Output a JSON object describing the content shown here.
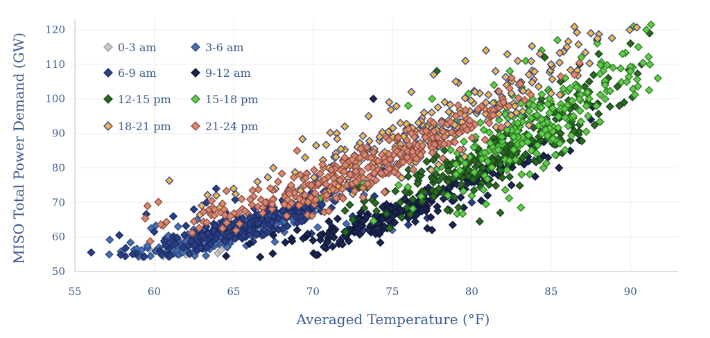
{
  "chart_data": {
    "type": "scatter",
    "title": "",
    "xlabel": "Averaged Temperature (°F)",
    "ylabel": "MISO Total Power Demand (GW)",
    "xlim": [
      55,
      93
    ],
    "ylim": [
      50,
      123
    ],
    "xticks": [
      55,
      60,
      65,
      70,
      75,
      80,
      85,
      90
    ],
    "yticks": [
      50,
      60,
      70,
      80,
      90,
      100,
      110,
      120
    ],
    "grid": true,
    "marker": "diamond",
    "legend_position": "top-left",
    "series": [
      {
        "name": "0-3 am",
        "color": "#c8c8c8",
        "stroke": "#9a9a9a",
        "center": [
          62.5,
          58
        ],
        "dx": 1.6,
        "dy": 1.8,
        "points": [
          [
            60.2,
            56.5
          ],
          [
            61.0,
            57.2
          ],
          [
            61.8,
            58.0
          ],
          [
            62.3,
            56.8
          ],
          [
            62.9,
            59.1
          ],
          [
            63.4,
            57.5
          ],
          [
            63.8,
            58.6
          ],
          [
            64.0,
            55.3
          ],
          [
            64.2,
            56.2
          ],
          [
            62.0,
            60.0
          ],
          [
            61.4,
            59.0
          ],
          [
            63.1,
            60.5
          ],
          [
            60.8,
            58.3
          ],
          [
            64.5,
            57.8
          ],
          [
            62.6,
            57.0
          ],
          [
            63.6,
            59.5
          ]
        ]
      },
      {
        "name": "3-6 am",
        "color": "#4a6fb0",
        "stroke": "#2c4a85",
        "center": [
          64.5,
          60.5
        ],
        "dx": 3.2,
        "dy": 3.0,
        "points": [
          [
            57.2,
            59.2
          ],
          [
            58.5,
            58.4
          ],
          [
            59.2,
            56.2
          ],
          [
            59.8,
            62.5
          ],
          [
            60.3,
            57.0
          ],
          [
            60.9,
            60.4
          ],
          [
            61.5,
            63.0
          ],
          [
            61.8,
            55.6
          ],
          [
            62.4,
            58.5
          ],
          [
            63.0,
            61.2
          ],
          [
            63.5,
            56.5
          ],
          [
            64.1,
            64.0
          ],
          [
            64.6,
            59.0
          ],
          [
            65.2,
            62.6
          ],
          [
            65.8,
            57.5
          ],
          [
            66.4,
            60.5
          ],
          [
            67.0,
            63.4
          ],
          [
            67.6,
            58.6
          ],
          [
            68.2,
            61.4
          ],
          [
            68.8,
            64.2
          ],
          [
            69.5,
            60.0
          ],
          [
            70.3,
            62.8
          ],
          [
            71.0,
            59.5
          ],
          [
            72.1,
            63.8
          ],
          [
            73.0,
            61.0
          ],
          [
            74.2,
            64.5
          ],
          [
            75.0,
            62.0
          ],
          [
            60.1,
            63.3
          ],
          [
            62.7,
            65.0
          ],
          [
            66.0,
            66.2
          ]
        ]
      },
      {
        "name": "6-9 am",
        "color": "#2a3f85",
        "stroke": "#1a2a60",
        "center": [
          66.0,
          63.0
        ],
        "dx": 3.5,
        "dy": 3.5,
        "points": [
          [
            57.8,
            60.5
          ],
          [
            58.2,
            56.8
          ],
          [
            59.5,
            66.6
          ],
          [
            60.0,
            61.5
          ],
          [
            61.2,
            66.0
          ],
          [
            62.0,
            63.2
          ],
          [
            62.5,
            68.0
          ],
          [
            63.3,
            70.0
          ],
          [
            63.9,
            74.0
          ],
          [
            64.5,
            66.5
          ],
          [
            65.1,
            70.8
          ],
          [
            65.7,
            63.5
          ],
          [
            66.3,
            68.2
          ],
          [
            66.9,
            60.6
          ],
          [
            67.5,
            66.0
          ],
          [
            68.1,
            62.5
          ],
          [
            68.7,
            69.0
          ],
          [
            69.3,
            64.5
          ],
          [
            69.9,
            61.0
          ],
          [
            70.5,
            67.5
          ],
          [
            71.2,
            63.0
          ],
          [
            71.9,
            60.0
          ],
          [
            72.5,
            66.0
          ],
          [
            73.2,
            62.0
          ],
          [
            74.0,
            64.8
          ],
          [
            75.1,
            66.5
          ],
          [
            76.0,
            63.5
          ],
          [
            77.2,
            65.5
          ],
          [
            78.5,
            68.0
          ],
          [
            80.0,
            70.0
          ]
        ]
      },
      {
        "name": "9-12 am",
        "color": "#1a2550",
        "stroke": "#0e1635",
        "center": [
          75.0,
          66.0
        ],
        "dx": 4.0,
        "dy": 4.0,
        "points": [
          [
            66.0,
            58.0
          ],
          [
            67.5,
            60.5
          ],
          [
            69.0,
            62.0
          ],
          [
            70.0,
            59.0
          ],
          [
            71.0,
            64.5
          ],
          [
            72.0,
            61.5
          ],
          [
            73.0,
            67.0
          ],
          [
            73.8,
            100.0
          ],
          [
            74.5,
            63.0
          ],
          [
            75.2,
            69.0
          ],
          [
            76.0,
            65.5
          ],
          [
            76.8,
            71.0
          ],
          [
            77.5,
            62.0
          ],
          [
            77.2,
            62.5
          ],
          [
            78.2,
            74.0
          ],
          [
            78.8,
            63.5
          ],
          [
            79.5,
            68.5
          ],
          [
            80.2,
            76.0
          ],
          [
            81.0,
            72.0
          ],
          [
            81.8,
            78.5
          ],
          [
            82.5,
            75.0
          ],
          [
            83.3,
            81.0
          ],
          [
            84.0,
            77.5
          ],
          [
            84.8,
            83.0
          ],
          [
            85.5,
            80.0
          ],
          [
            86.2,
            85.0
          ],
          [
            86.8,
            88.0
          ],
          [
            87.5,
            94.0
          ],
          [
            83.6,
            82.0
          ],
          [
            80.6,
            70.5
          ]
        ]
      },
      {
        "name": "12-15 pm",
        "color": "#2a6a24",
        "stroke": "#174016",
        "center": [
          81.0,
          82.0
        ],
        "dx": 4.0,
        "dy": 8.0,
        "points": [
          [
            72.5,
            65.0
          ],
          [
            74.0,
            67.5
          ],
          [
            75.5,
            70.0
          ],
          [
            77.0,
            73.0
          ],
          [
            77.8,
            108.0
          ],
          [
            78.5,
            76.0
          ],
          [
            79.0,
            78.5
          ],
          [
            79.8,
            82.0
          ],
          [
            80.5,
            64.5
          ],
          [
            80.7,
            80.0
          ],
          [
            81.2,
            86.0
          ],
          [
            81.8,
            67.0
          ],
          [
            82.2,
            90.0
          ],
          [
            82.8,
            84.0
          ],
          [
            83.3,
            95.0
          ],
          [
            83.8,
            88.0
          ],
          [
            84.4,
            100.0
          ],
          [
            85.0,
            92.0
          ],
          [
            85.6,
            105.0
          ],
          [
            86.2,
            97.0
          ],
          [
            86.8,
            110.0
          ],
          [
            87.4,
            102.0
          ],
          [
            88.0,
            113.0
          ],
          [
            88.6,
            106.0
          ],
          [
            89.3,
            98.0
          ],
          [
            90.0,
            116.0
          ],
          [
            90.7,
            110.0
          ],
          [
            91.2,
            119.0
          ],
          [
            84.6,
            112.0
          ],
          [
            87.9,
            117.0
          ]
        ]
      },
      {
        "name": "15-18 pm",
        "color": "#5fcc4a",
        "stroke": "#2e7a25",
        "center": [
          84.0,
          92.0
        ],
        "dx": 3.6,
        "dy": 10.0,
        "points": [
          [
            76.0,
            98.0
          ],
          [
            77.5,
            100.0
          ],
          [
            78.5,
            72.0
          ],
          [
            79.0,
            92.0
          ],
          [
            79.8,
            101.5
          ],
          [
            80.3,
            96.0
          ],
          [
            80.9,
            69.5
          ],
          [
            81.4,
            104.0
          ],
          [
            81.9,
            89.0
          ],
          [
            82.4,
            108.0
          ],
          [
            82.9,
            93.0
          ],
          [
            83.1,
            68.5
          ],
          [
            83.4,
            111.0
          ],
          [
            83.9,
            98.0
          ],
          [
            84.4,
            114.0
          ],
          [
            84.9,
            102.0
          ],
          [
            85.4,
            117.0
          ],
          [
            85.9,
            106.0
          ],
          [
            86.4,
            95.0
          ],
          [
            86.9,
            112.0
          ],
          [
            87.4,
            100.0
          ],
          [
            87.9,
            116.0
          ],
          [
            88.4,
            104.0
          ],
          [
            88.9,
            109.0
          ],
          [
            89.5,
            113.0
          ],
          [
            90.0,
            108.0
          ],
          [
            90.5,
            115.0
          ],
          [
            91.0,
            120.0
          ],
          [
            91.3,
            121.5
          ],
          [
            90.2,
            121.0
          ]
        ]
      },
      {
        "name": "18-21 pm",
        "color": "#f0b84e",
        "stroke": "#2c3f85",
        "center": [
          77.5,
          90.0
        ],
        "dx": 5.5,
        "dy": 8.0,
        "points": [
          [
            63.5,
            67.0
          ],
          [
            65.0,
            74.0
          ],
          [
            66.5,
            76.0
          ],
          [
            67.5,
            80.0
          ],
          [
            68.5,
            74.0
          ],
          [
            69.5,
            83.0
          ],
          [
            70.2,
            86.5
          ],
          [
            71.0,
            80.0
          ],
          [
            72.0,
            92.0
          ],
          [
            72.8,
            86.0
          ],
          [
            73.5,
            95.0
          ],
          [
            74.2,
            89.0
          ],
          [
            74.8,
            99.0
          ],
          [
            75.5,
            93.0
          ],
          [
            76.2,
            102.0
          ],
          [
            77.0,
            96.0
          ],
          [
            77.6,
            107.0
          ],
          [
            78.3,
            99.0
          ],
          [
            79.0,
            105.0
          ],
          [
            79.6,
            111.0
          ],
          [
            80.2,
            102.0
          ],
          [
            80.9,
            114.0
          ],
          [
            81.5,
            108.0
          ],
          [
            82.2,
            104.0
          ],
          [
            82.9,
            111.0
          ],
          [
            83.6,
            107.0
          ],
          [
            84.3,
            113.0
          ],
          [
            85.0,
            110.0
          ],
          [
            86.0,
            115.0
          ],
          [
            87.5,
            119.0
          ]
        ]
      },
      {
        "name": "21-24 pm",
        "color": "#d98874",
        "stroke": "#8a4a3c",
        "center": [
          72.5,
          78.0
        ],
        "dx": 5.0,
        "dy": 6.0,
        "points": [
          [
            62.5,
            64.5
          ],
          [
            63.8,
            68.0
          ],
          [
            64.8,
            66.0
          ],
          [
            65.5,
            71.0
          ],
          [
            66.2,
            73.5
          ],
          [
            67.0,
            70.0
          ],
          [
            67.8,
            76.0
          ],
          [
            68.5,
            72.5
          ],
          [
            69.2,
            78.0
          ],
          [
            69.0,
            85.0
          ],
          [
            69.9,
            75.0
          ],
          [
            70.6,
            81.0
          ],
          [
            71.3,
            77.0
          ],
          [
            72.0,
            83.0
          ],
          [
            72.7,
            79.0
          ],
          [
            73.4,
            86.0
          ],
          [
            74.1,
            82.0
          ],
          [
            74.8,
            88.0
          ],
          [
            75.5,
            84.0
          ],
          [
            76.2,
            90.0
          ],
          [
            76.9,
            86.5
          ],
          [
            77.6,
            93.0
          ],
          [
            78.3,
            89.0
          ],
          [
            79.0,
            95.0
          ],
          [
            79.7,
            91.0
          ],
          [
            80.4,
            97.0
          ],
          [
            81.1,
            93.0
          ],
          [
            82.0,
            99.0
          ],
          [
            71.0,
            67.5
          ],
          [
            74.5,
            73.0
          ]
        ]
      }
    ]
  }
}
